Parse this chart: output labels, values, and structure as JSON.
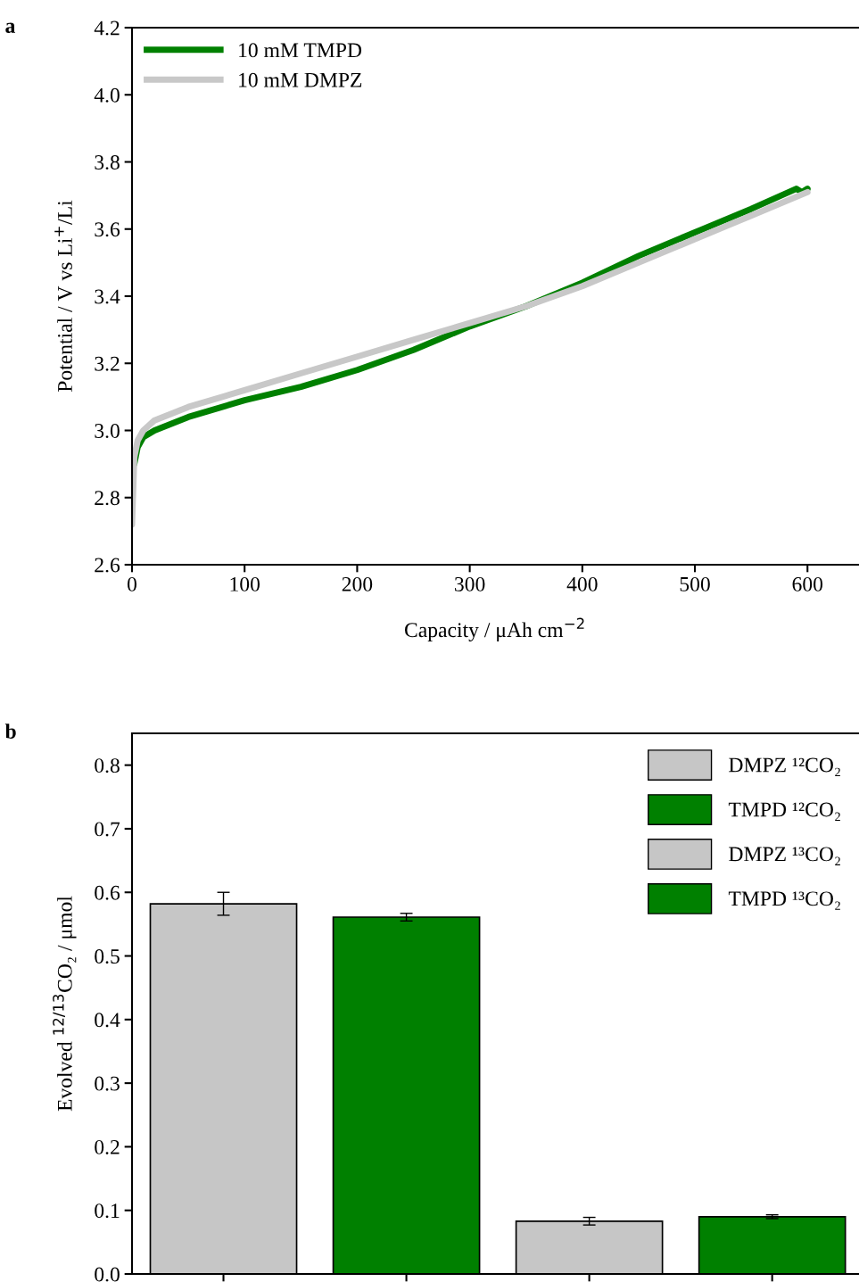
{
  "chart_data": [
    {
      "type": "line",
      "title": "a",
      "xlabel": "Capacity / μAh cm$^{−2}$",
      "ylabel": "Potential / V vs Li$^{+}$/Li",
      "xlim": [
        0,
        645
      ],
      "ylim": [
        2.6,
        4.2
      ],
      "xticks": [
        0,
        100,
        200,
        300,
        400,
        500,
        600
      ],
      "yticks": [
        2.6,
        2.8,
        {
          "value": 3,
          "label": "3.0"
        },
        3.2,
        3.4,
        3.6,
        3.8,
        {
          "value": 4,
          "label": "4.0"
        },
        4.2
      ],
      "legend": "top left",
      "grid": false,
      "series": [
        {
          "name": "10 mM TMPD",
          "color": "#008000",
          "x": [
            2,
            5,
            10,
            20,
            50,
            100,
            150,
            200,
            250,
            300,
            350,
            400,
            450,
            500,
            550,
            590,
            595,
            600
          ],
          "values": [
            2.9,
            2.95,
            2.98,
            3.0,
            3.04,
            3.09,
            3.13,
            3.18,
            3.24,
            3.31,
            3.37,
            3.44,
            3.52,
            3.59,
            3.66,
            3.72,
            3.71,
            3.72
          ]
        },
        {
          "name": "10 mM DMPZ",
          "color": "#c8c8c8",
          "x": [
            0,
            2,
            5,
            10,
            20,
            50,
            100,
            150,
            200,
            250,
            300,
            350,
            400,
            450,
            500,
            550,
            600
          ],
          "values": [
            2.72,
            2.92,
            2.97,
            3.0,
            3.03,
            3.07,
            3.12,
            3.17,
            3.22,
            3.27,
            3.32,
            3.37,
            3.43,
            3.5,
            3.57,
            3.64,
            3.71
          ]
        }
      ]
    },
    {
      "type": "bar",
      "title": "b",
      "ylabel": "Evolved $^{12/13}$CO₂ / μmol",
      "categories": [
        null,
        null,
        null,
        null
      ],
      "ylim": [
        0,
        0.85
      ],
      "yticks": [
        {
          "value": 0,
          "label": "0.0"
        },
        0.1,
        0.2,
        0.3,
        0.4,
        0.5,
        0.6,
        0.7,
        0.8
      ],
      "legend": "top right",
      "grid": false,
      "tick_labels": "y",
      "series": [
        {
          "name": "DMPZ ¹²CO₂",
          "color": "#c6c6c6",
          "values": [
            0.582,
            null,
            null,
            null
          ],
          "errors": [
            0.018,
            null,
            null,
            null
          ]
        },
        {
          "name": "TMPD ¹²CO₂",
          "color": "#008000",
          "values": [
            null,
            0.561,
            null,
            null
          ],
          "errors": [
            null,
            0.006,
            null,
            null
          ]
        },
        {
          "name": "DMPZ ¹³CO₂",
          "color": "#c6c6c6",
          "values": [
            null,
            null,
            0.083,
            null
          ],
          "errors": [
            null,
            null,
            0.006,
            null
          ]
        },
        {
          "name": "TMPD ¹³CO₂",
          "color": "#008000",
          "values": [
            null,
            null,
            null,
            0.09
          ],
          "errors": [
            null,
            null,
            null,
            0.003
          ]
        }
      ]
    }
  ]
}
